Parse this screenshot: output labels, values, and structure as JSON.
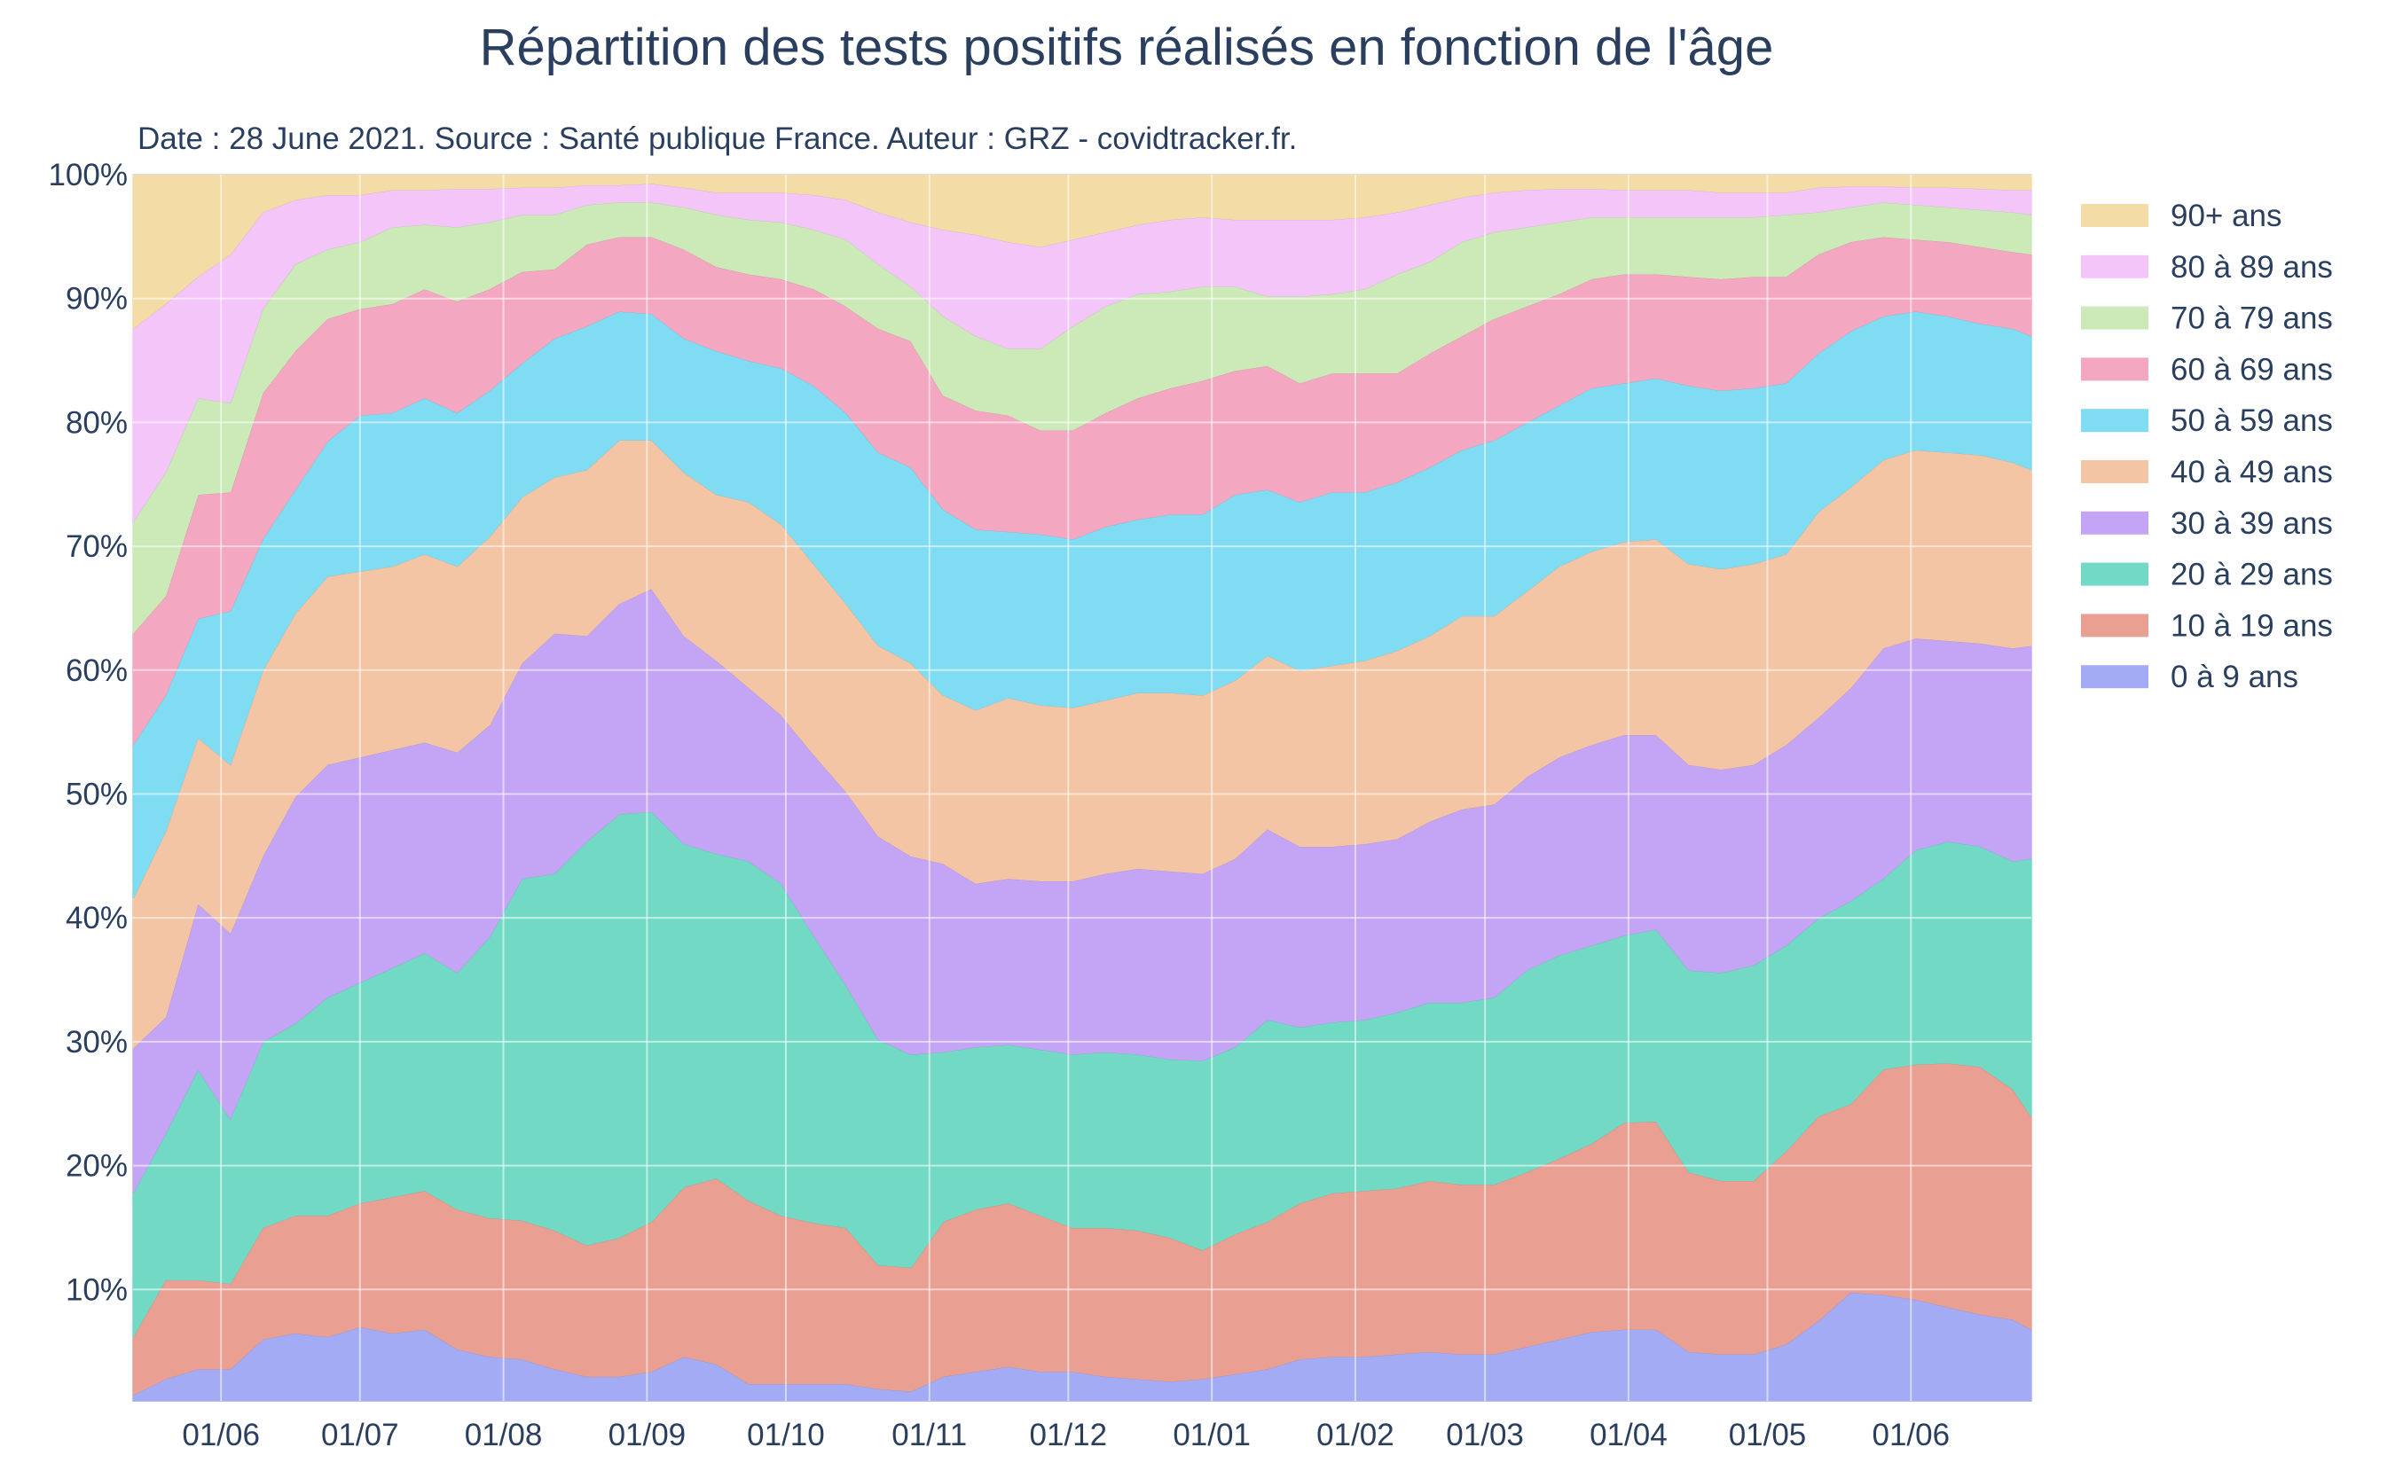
{
  "chart_data": {
    "type": "area",
    "stacked": true,
    "normalized": true,
    "title": "Répartition des tests positifs réalisés en fonction de l'âge",
    "subtitle": "Date : 28 June 2021. Source : Santé publique France. Auteur : GRZ - covidtracker.fr.",
    "xlabel": "",
    "ylabel": "",
    "x_range": [
      "2020-05-13",
      "2021-06-27"
    ],
    "ylim": [
      1,
      100
    ],
    "y_ticks": [
      "10%",
      "20%",
      "30%",
      "40%",
      "50%",
      "60%",
      "70%",
      "80%",
      "90%",
      "100%"
    ],
    "y_tick_values": [
      10,
      20,
      30,
      40,
      50,
      60,
      70,
      80,
      90,
      100
    ],
    "x_tick_labels": [
      "01/06",
      "01/07",
      "01/08",
      "01/09",
      "01/10",
      "01/11",
      "01/12",
      "01/01",
      "01/02",
      "01/03",
      "01/04",
      "01/05",
      "01/06"
    ],
    "x_tick_dates": [
      "2020-06-01",
      "2020-07-01",
      "2020-08-01",
      "2020-09-01",
      "2020-10-01",
      "2020-11-01",
      "2020-12-01",
      "2021-01-01",
      "2021-02-01",
      "2021-03-01",
      "2021-04-01",
      "2021-05-01",
      "2021-06-01"
    ],
    "legend_position": "right",
    "grid": true,
    "dates": [
      "2020-05-13",
      "2020-05-20",
      "2020-05-27",
      "2020-06-03",
      "2020-06-10",
      "2020-06-17",
      "2020-06-24",
      "2020-07-01",
      "2020-07-08",
      "2020-07-15",
      "2020-07-22",
      "2020-07-29",
      "2020-08-05",
      "2020-08-12",
      "2020-08-19",
      "2020-08-26",
      "2020-09-02",
      "2020-09-09",
      "2020-09-16",
      "2020-09-23",
      "2020-09-30",
      "2020-10-07",
      "2020-10-14",
      "2020-10-21",
      "2020-10-28",
      "2020-11-04",
      "2020-11-11",
      "2020-11-18",
      "2020-11-25",
      "2020-12-02",
      "2020-12-09",
      "2020-12-16",
      "2020-12-23",
      "2020-12-30",
      "2021-01-06",
      "2021-01-13",
      "2021-01-20",
      "2021-01-27",
      "2021-02-03",
      "2021-02-10",
      "2021-02-17",
      "2021-02-24",
      "2021-03-03",
      "2021-03-10",
      "2021-03-17",
      "2021-03-24",
      "2021-03-31",
      "2021-04-07",
      "2021-04-14",
      "2021-04-21",
      "2021-04-28",
      "2021-05-05",
      "2021-05-12",
      "2021-05-19",
      "2021-05-26",
      "2021-06-02",
      "2021-06-09",
      "2021-06-16",
      "2021-06-23",
      "2021-06-27"
    ],
    "series": [
      {
        "name": "0 à 9 ans",
        "color": "#a3abf5",
        "values": [
          1.5,
          2.8,
          3.6,
          3.6,
          6.0,
          6.5,
          6.2,
          7.0,
          6.5,
          6.8,
          5.2,
          4.6,
          4.4,
          3.6,
          3.0,
          3.0,
          3.4,
          4.6,
          4.0,
          2.4,
          2.4,
          2.4,
          2.4,
          2.0,
          1.8,
          3.0,
          3.4,
          3.8,
          3.4,
          3.4,
          3.0,
          2.8,
          2.6,
          2.8,
          3.2,
          3.6,
          4.4,
          4.6,
          4.6,
          4.8,
          5.0,
          4.8,
          4.8,
          5.4,
          6.0,
          6.6,
          6.8,
          6.8,
          5.0,
          4.8,
          4.8,
          5.6,
          7.5,
          9.8,
          9.6,
          9.2,
          8.6,
          8.0,
          7.6,
          6.8
        ]
      },
      {
        "name": "10 à 19 ans",
        "color": "#ea9f93",
        "values": [
          6.2,
          10.8,
          10.8,
          10.5,
          15.0,
          16.0,
          16.0,
          17.0,
          17.5,
          18.0,
          16.5,
          15.8,
          15.6,
          14.8,
          13.6,
          14.2,
          15.5,
          18.3,
          19.0,
          17.2,
          16.0,
          15.4,
          15.0,
          12.0,
          11.8,
          15.5,
          16.5,
          17.0,
          16.0,
          15.0,
          15.0,
          14.8,
          14.2,
          13.2,
          14.5,
          15.5,
          17.0,
          17.8,
          18.0,
          18.2,
          18.8,
          18.5,
          18.5,
          19.5,
          20.6,
          21.8,
          23.5,
          23.6,
          19.5,
          18.8,
          18.8,
          21.2,
          24.0,
          25.0,
          27.8,
          28.2,
          28.3,
          28.0,
          26.2,
          24.0
        ]
      },
      {
        "name": "20 à 29 ans",
        "color": "#72dac4",
        "values": [
          17.8,
          22.6,
          27.8,
          23.8,
          30.0,
          31.5,
          33.6,
          34.8,
          36.0,
          37.2,
          35.6,
          38.5,
          43.2,
          43.6,
          46.2,
          48.4,
          48.6,
          46.0,
          45.2,
          44.6,
          42.8,
          38.6,
          34.6,
          30.2,
          29.0,
          29.2,
          29.6,
          29.8,
          29.4,
          29.0,
          29.2,
          29.0,
          28.6,
          28.5,
          29.6,
          31.8,
          31.2,
          31.6,
          31.8,
          32.4,
          33.2,
          33.2,
          33.6,
          35.8,
          37.0,
          37.8,
          38.6,
          39.1,
          35.8,
          35.6,
          36.2,
          37.8,
          40.0,
          41.4,
          43.2,
          45.5,
          46.2,
          45.8,
          44.6,
          44.8
        ]
      },
      {
        "name": "30 à 39 ans",
        "color": "#c4a5f5",
        "values": [
          29.5,
          32.0,
          41.2,
          38.8,
          45.0,
          49.8,
          52.4,
          53.0,
          53.6,
          54.2,
          53.4,
          55.6,
          60.6,
          63.0,
          62.8,
          65.4,
          66.6,
          62.8,
          60.8,
          58.6,
          56.4,
          53.2,
          50.2,
          46.6,
          45.0,
          44.4,
          42.8,
          43.2,
          43.0,
          43.0,
          43.6,
          44.0,
          43.8,
          43.6,
          44.8,
          47.2,
          45.8,
          45.8,
          46.0,
          46.4,
          47.8,
          48.8,
          49.2,
          51.4,
          53.0,
          54.0,
          54.8,
          54.8,
          52.4,
          52.0,
          52.4,
          54.0,
          56.2,
          58.6,
          61.8,
          62.6,
          62.4,
          62.2,
          61.8,
          62.0
        ]
      },
      {
        "name": "40 à 49 ans",
        "color": "#f3c5a5",
        "values": [
          41.6,
          47.0,
          54.6,
          52.4,
          60.0,
          64.6,
          67.6,
          68.0,
          68.4,
          69.4,
          68.4,
          70.8,
          74.0,
          75.6,
          76.2,
          78.6,
          78.6,
          76.0,
          74.2,
          73.6,
          71.8,
          68.6,
          65.4,
          62.0,
          60.6,
          58.0,
          56.8,
          57.8,
          57.2,
          57.0,
          57.6,
          58.2,
          58.2,
          58.0,
          59.2,
          61.2,
          60.0,
          60.4,
          60.8,
          61.6,
          62.8,
          64.4,
          64.4,
          66.4,
          68.4,
          69.6,
          70.4,
          70.6,
          68.6,
          68.2,
          68.6,
          69.4,
          72.8,
          74.8,
          77.0,
          77.8,
          77.6,
          77.4,
          76.8,
          76.2
        ]
      },
      {
        "name": "50 à 59 ans",
        "color": "#7fdcf2",
        "values": [
          54.0,
          58.0,
          64.2,
          64.8,
          70.6,
          74.6,
          78.5,
          80.6,
          80.8,
          82.0,
          80.8,
          82.6,
          84.8,
          86.8,
          87.8,
          89.0,
          88.8,
          86.8,
          85.8,
          85.0,
          84.4,
          83.0,
          80.8,
          77.6,
          76.4,
          73.0,
          71.4,
          71.2,
          71.0,
          70.6,
          71.6,
          72.2,
          72.6,
          72.6,
          74.2,
          74.6,
          73.6,
          74.4,
          74.4,
          75.2,
          76.4,
          77.8,
          78.6,
          80.0,
          81.4,
          82.8,
          83.2,
          83.6,
          83.0,
          82.6,
          82.8,
          83.2,
          85.6,
          87.4,
          88.6,
          89.0,
          88.6,
          88.0,
          87.6,
          87.0
        ]
      },
      {
        "name": "60 à 69 ans",
        "color": "#f3a7c0",
        "values": [
          63.0,
          66.0,
          74.2,
          74.4,
          82.4,
          85.8,
          88.4,
          89.2,
          89.6,
          90.8,
          89.8,
          90.8,
          92.2,
          92.4,
          94.4,
          95.0,
          95.0,
          94.0,
          92.6,
          92.0,
          91.6,
          90.8,
          89.4,
          87.6,
          86.6,
          82.2,
          81.0,
          80.6,
          79.4,
          79.4,
          80.8,
          82.0,
          82.8,
          83.4,
          84.2,
          84.6,
          83.2,
          84.0,
          84.0,
          84.0,
          85.6,
          87.0,
          88.4,
          89.4,
          90.4,
          91.6,
          92.0,
          92.0,
          91.8,
          91.6,
          91.8,
          91.8,
          93.6,
          94.6,
          95.0,
          94.8,
          94.6,
          94.2,
          93.8,
          93.6
        ]
      },
      {
        "name": "70 à 79 ans",
        "color": "#cceab8",
        "values": [
          72.0,
          76.0,
          82.0,
          81.6,
          89.2,
          92.8,
          94.0,
          94.6,
          95.8,
          96.0,
          95.8,
          96.2,
          96.8,
          96.8,
          97.6,
          97.8,
          97.8,
          97.4,
          96.8,
          96.4,
          96.2,
          95.6,
          94.8,
          92.8,
          91.0,
          88.6,
          87.0,
          86.0,
          86.0,
          87.8,
          89.4,
          90.4,
          90.6,
          91.0,
          91.0,
          90.2,
          90.2,
          90.4,
          90.8,
          92.0,
          93.0,
          94.6,
          95.4,
          95.8,
          96.2,
          96.6,
          96.6,
          96.6,
          96.6,
          96.6,
          96.6,
          96.8,
          97.0,
          97.4,
          97.8,
          97.6,
          97.4,
          97.2,
          97.0,
          96.8
        ]
      },
      {
        "name": "80 à 89 ans",
        "color": "#f3c5f8",
        "values": [
          87.6,
          89.6,
          91.8,
          93.6,
          97.0,
          98.0,
          98.4,
          98.4,
          98.8,
          98.8,
          98.9,
          98.9,
          99.0,
          99.0,
          99.2,
          99.2,
          99.3,
          99.0,
          98.6,
          98.6,
          98.6,
          98.4,
          98.0,
          97.0,
          96.2,
          95.6,
          95.2,
          94.6,
          94.2,
          94.8,
          95.4,
          96.0,
          96.4,
          96.6,
          96.4,
          96.4,
          96.4,
          96.4,
          96.6,
          97.0,
          97.6,
          98.2,
          98.6,
          98.8,
          98.9,
          98.9,
          98.8,
          98.8,
          98.8,
          98.6,
          98.6,
          98.6,
          99.0,
          99.1,
          99.1,
          99.0,
          99.0,
          98.9,
          98.8,
          98.8
        ]
      },
      {
        "name": "90+ ans",
        "color": "#f3dca5",
        "values": [
          100,
          100,
          100,
          100,
          100,
          100,
          100,
          100,
          100,
          100,
          100,
          100,
          100,
          100,
          100,
          100,
          100,
          100,
          100,
          100,
          100,
          100,
          100,
          100,
          100,
          100,
          100,
          100,
          100,
          100,
          100,
          100,
          100,
          100,
          100,
          100,
          100,
          100,
          100,
          100,
          100,
          100,
          100,
          100,
          100,
          100,
          100,
          100,
          100,
          100,
          100,
          100,
          100,
          100,
          100,
          100,
          100,
          100,
          100,
          100
        ]
      }
    ],
    "cumulative": true
  }
}
